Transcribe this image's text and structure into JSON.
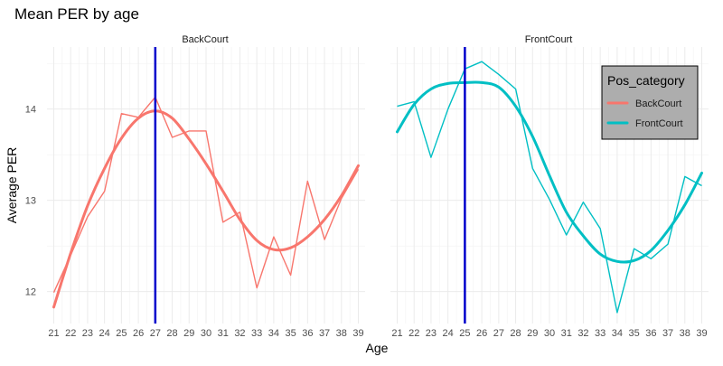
{
  "chart_data": {
    "type": "line",
    "title": "Mean PER by age",
    "xlabel": "Age",
    "ylabel": "Average PER",
    "x": [
      21,
      22,
      23,
      24,
      25,
      26,
      27,
      28,
      29,
      30,
      31,
      32,
      33,
      34,
      35,
      36,
      37,
      38,
      39
    ],
    "xlim": [
      20.6,
      39.4
    ],
    "ylim": [
      11.65,
      14.68
    ],
    "y_ticks": [
      12,
      13,
      14
    ],
    "grid": true,
    "legend": {
      "title": "Pos_category",
      "position": "top-right",
      "entries": [
        "BackCourt",
        "FrontCourt"
      ]
    },
    "panels": [
      {
        "label": "BackCourt",
        "color": "#F8766D",
        "vline_x": 27,
        "values": [
          11.99,
          12.4,
          12.82,
          13.1,
          13.95,
          13.91,
          14.13,
          13.69,
          13.76,
          13.76,
          12.76,
          12.87,
          12.04,
          12.6,
          12.18,
          13.21,
          12.57,
          13.02,
          13.34
        ],
        "smooth": [
          11.83,
          12.42,
          12.94,
          13.35,
          13.68,
          13.9,
          13.98,
          13.9,
          13.67,
          13.4,
          13.1,
          12.79,
          12.56,
          12.46,
          12.48,
          12.6,
          12.79,
          13.05,
          13.38
        ]
      },
      {
        "label": "FrontCourt",
        "color": "#00BFC4",
        "vline_x": 25,
        "values": [
          14.03,
          14.08,
          13.47,
          14.0,
          14.44,
          14.52,
          14.38,
          14.22,
          13.35,
          13.01,
          12.62,
          12.98,
          12.69,
          11.77,
          12.47,
          12.36,
          12.52,
          13.26,
          13.16
        ],
        "smooth": [
          13.75,
          14.05,
          14.22,
          14.28,
          14.29,
          14.29,
          14.24,
          14.03,
          13.7,
          13.27,
          12.87,
          12.61,
          12.41,
          12.33,
          12.34,
          12.45,
          12.67,
          12.95,
          13.3
        ]
      }
    ],
    "vline_color": "#0000CC"
  }
}
